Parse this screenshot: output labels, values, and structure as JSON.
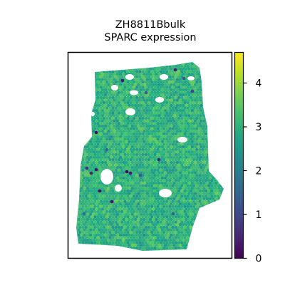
{
  "chart_data": {
    "type": "heatmap",
    "title": "ZH8811Bbulk",
    "subtitle": "SPARC expression",
    "xlabel": "",
    "ylabel": "",
    "grid": false,
    "colormap": "viridis",
    "colorbar": {
      "vmin": 0,
      "vmax": 4.7,
      "ticks": [
        0,
        1,
        2,
        3,
        4
      ],
      "tick_labels": [
        "0",
        "1",
        "2",
        "3",
        "4"
      ]
    },
    "value_distribution": {
      "typical_low": 2.2,
      "typical_high": 3.8,
      "mean": 3.0
    },
    "colors": {
      "frame": "#000000",
      "background": "#ffffff",
      "low": "#440154",
      "mid": "#21918c",
      "high": "#fde725"
    }
  }
}
